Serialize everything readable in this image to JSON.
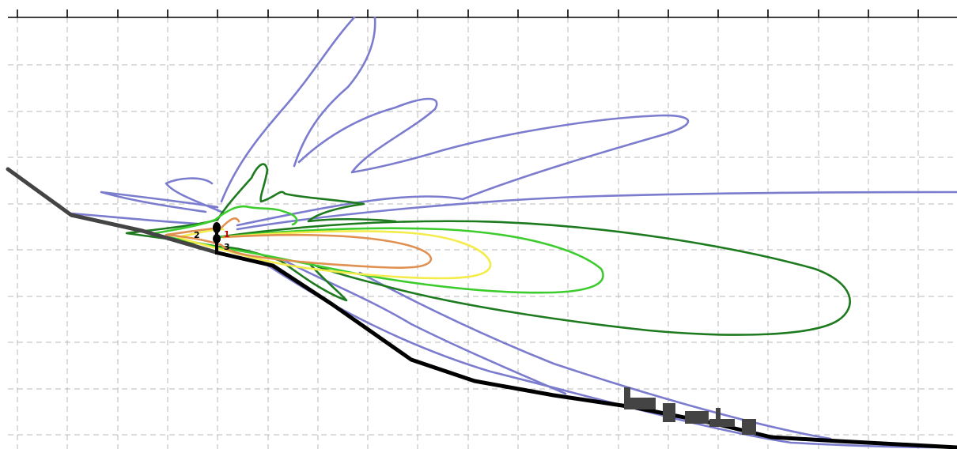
{
  "antennas": [
    {
      "id": "antenna-1",
      "label": "1",
      "color": "#c00000"
    },
    {
      "id": "antenna-2",
      "label": "2",
      "color": "#000000"
    },
    {
      "id": "antenna-3",
      "label": "3",
      "color": "#000000"
    }
  ],
  "colors": {
    "outer_lobe": "#7c7ccf",
    "dark_green": "#1e7a1e",
    "light_green": "#3dcc2e",
    "yellow": "#f4ec4a",
    "orange": "#e09050",
    "terrain_left": "#444444",
    "terrain_right": "#000000",
    "buildings": "#444444",
    "grid": "#b8b8b8"
  }
}
